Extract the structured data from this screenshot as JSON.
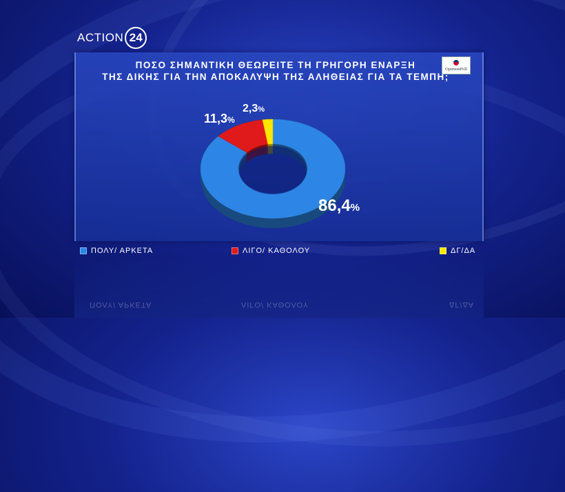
{
  "logo": {
    "text": "ACTION",
    "number": "24"
  },
  "badge": {
    "text": "OpinionPoll"
  },
  "chart_data": {
    "type": "pie",
    "title_lines": [
      "ΠΟΣΟ ΣΗΜΑΝΤΙΚΗ ΘΕΩΡΕΙΤΕ ΤΗ ΓΡΗΓΟΡΗ ΕΝΑΡΞΗ",
      "ΤΗΣ ΔΙΚΗΣ ΓΙΑ ΤΗΝ ΑΠΟΚΑΛΥΨΗ ΤΗΣ ΑΛΗΘΕΙΑΣ ΓΙΑ ΤΑ ΤΕΜΠΗ;"
    ],
    "categories": [
      "ΠΟΛΥ/ ΑΡΚΕΤΑ",
      "ΛΙΓΟ/ ΚΑΘΟΛΟΥ",
      "ΔΓ/ΔΑ"
    ],
    "values": [
      86.4,
      11.3,
      2.3
    ],
    "value_labels": [
      "86,4",
      "11,3",
      "2,3"
    ],
    "unit": "%",
    "colors": [
      "#2d86e6",
      "#e01a1a",
      "#ffe600"
    ],
    "legend_position": "bottom"
  }
}
